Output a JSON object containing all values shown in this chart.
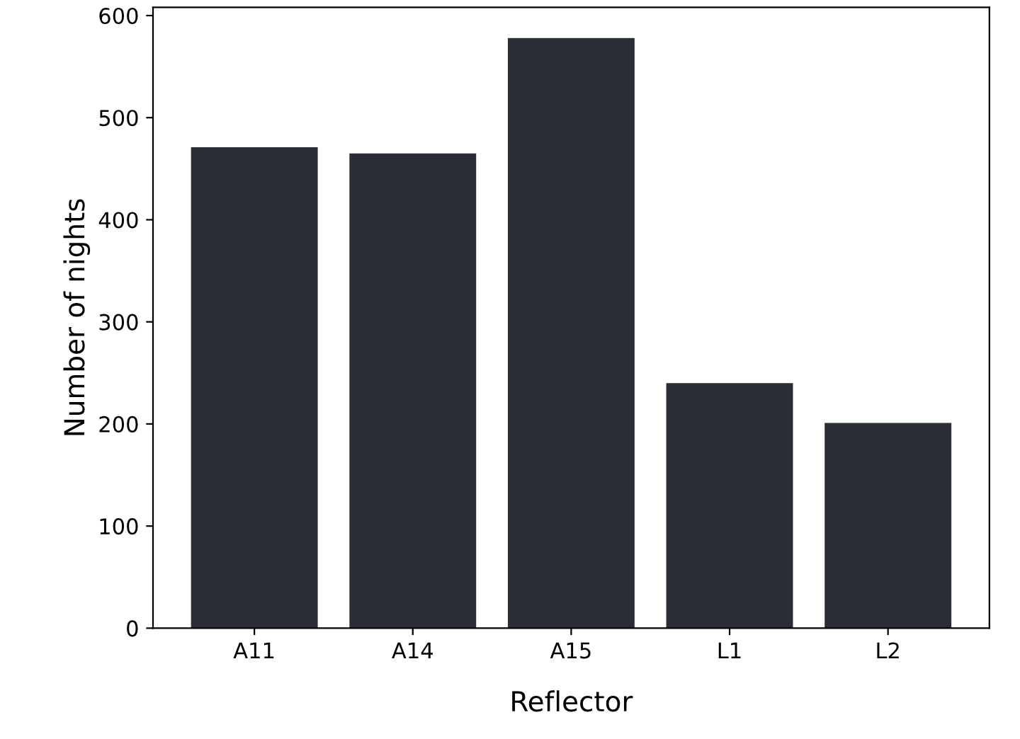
{
  "chart_data": {
    "type": "bar",
    "xlabel": "Reflector",
    "ylabel": "Number of nights",
    "categories": [
      "A11",
      "A14",
      "A15",
      "L1",
      "L2"
    ],
    "values": [
      471,
      465,
      578,
      240,
      201
    ],
    "color": "#2b2d36",
    "ylim": [
      0,
      608
    ],
    "yticks": [
      0,
      100,
      200,
      300,
      400,
      500,
      600
    ],
    "grid": false,
    "legend": false
  }
}
